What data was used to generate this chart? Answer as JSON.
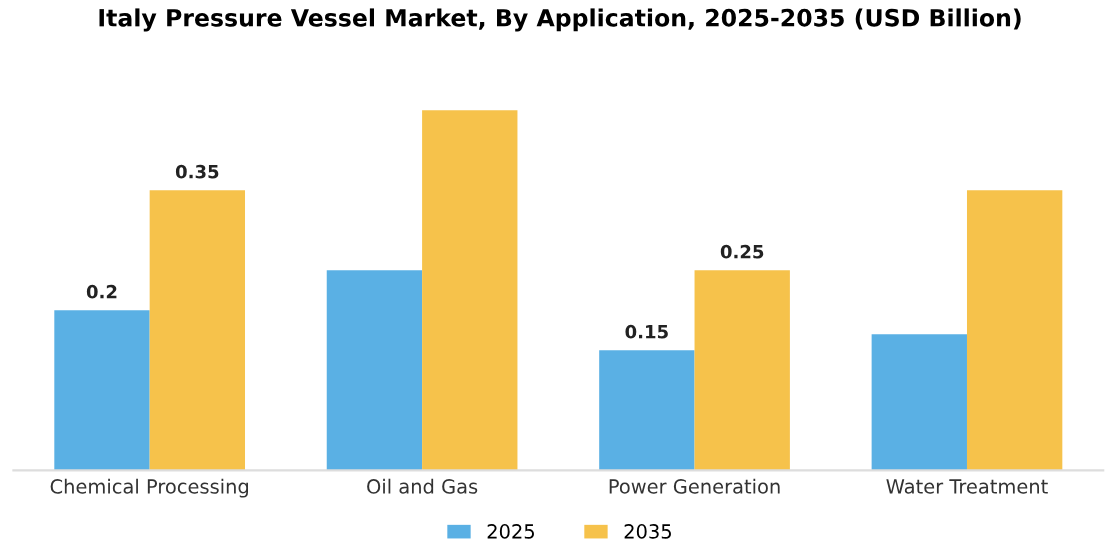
{
  "chart_data": {
    "type": "bar",
    "title": "Italy Pressure Vessel Market, By Application, 2025-2035 (USD Billion)",
    "categories": [
      "Chemical Processing",
      "Oil and Gas",
      "Power Generation",
      "Water Treatment"
    ],
    "series": [
      {
        "name": "2025",
        "color": "#5ab0e4",
        "values": [
          0.2,
          0.25,
          0.15,
          0.17
        ],
        "value_labels": [
          "0.2",
          null,
          "0.15",
          null
        ]
      },
      {
        "name": "2035",
        "color": "#f6c24b",
        "values": [
          0.35,
          0.45,
          0.25,
          0.35
        ],
        "value_labels": [
          "0.35",
          null,
          "0.25",
          null
        ]
      }
    ],
    "grid": false,
    "legend": "bottom"
  }
}
